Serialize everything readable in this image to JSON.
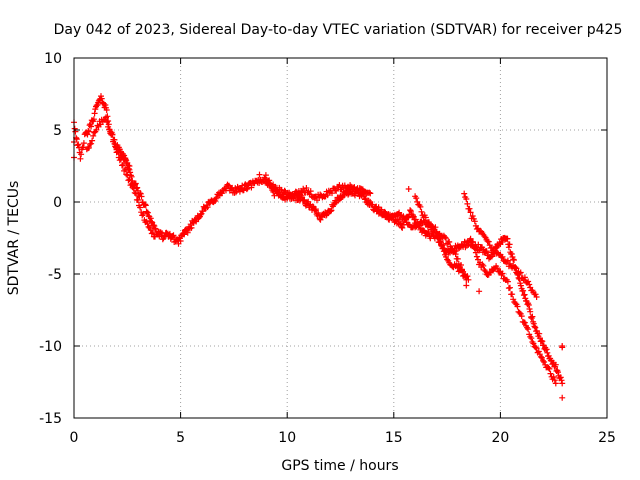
{
  "chart_data": {
    "type": "scatter",
    "title": "Day 042 of 2023, Sidereal Day-to-day VTEC variation (SDTVAR) for receiver p425",
    "xlabel": "GPS time / hours",
    "ylabel": "SDTVAR / TECUs",
    "xlim": [
      0,
      25
    ],
    "ylim": [
      -15,
      10
    ],
    "xticks": [
      0,
      5,
      10,
      15,
      20,
      25
    ],
    "yticks": [
      -15,
      -10,
      -5,
      0,
      5,
      10
    ],
    "x_tick_labels": [
      "0",
      "5",
      "10",
      "15",
      "20",
      "25"
    ],
    "y_tick_labels": [
      "-15",
      "-10",
      "-5",
      "0",
      "5",
      "10"
    ],
    "grid": true,
    "marker": "+",
    "color": "#ff0000",
    "series": [
      {
        "name": "SDTVAR",
        "trend": [
          [
            0.0,
            3.2
          ],
          [
            0.0,
            5.5
          ],
          [
            0.3,
            3.0
          ],
          [
            0.5,
            4.5
          ],
          [
            0.7,
            5.0
          ],
          [
            0.9,
            5.8
          ],
          [
            1.1,
            6.8
          ],
          [
            1.3,
            7.2
          ],
          [
            1.5,
            6.5
          ],
          [
            1.7,
            5.0
          ],
          [
            1.9,
            4.0
          ],
          [
            2.1,
            3.6
          ],
          [
            2.4,
            3.0
          ],
          [
            2.7,
            1.6
          ],
          [
            3.0,
            0.8
          ],
          [
            3.3,
            -0.2
          ],
          [
            3.6,
            -1.2
          ],
          [
            3.9,
            -2.2
          ],
          [
            4.2,
            -2.4
          ],
          [
            4.5,
            -2.3
          ],
          [
            4.8,
            -2.7
          ],
          [
            5.1,
            -2.4
          ],
          [
            5.4,
            -1.8
          ],
          [
            5.8,
            -1.0
          ],
          [
            6.3,
            -0.2
          ],
          [
            6.8,
            0.5
          ],
          [
            7.2,
            1.0
          ],
          [
            7.6,
            0.8
          ],
          [
            8.0,
            1.0
          ],
          [
            8.5,
            1.3
          ],
          [
            8.9,
            1.6
          ],
          [
            9.3,
            1.1
          ],
          [
            9.7,
            0.7
          ],
          [
            10.2,
            0.4
          ],
          [
            10.7,
            0.2
          ],
          [
            11.2,
            -0.5
          ],
          [
            11.6,
            -1.1
          ],
          [
            12.0,
            -0.5
          ],
          [
            12.5,
            0.4
          ],
          [
            13.0,
            0.7
          ],
          [
            13.5,
            0.5
          ],
          [
            14.0,
            -0.3
          ],
          [
            14.5,
            -0.8
          ],
          [
            15.0,
            -1.2
          ],
          [
            15.4,
            -1.6
          ],
          [
            15.8,
            -0.6
          ],
          [
            16.1,
            -1.6
          ],
          [
            16.5,
            -2.2
          ],
          [
            17.0,
            -2.5
          ],
          [
            17.5,
            -3.5
          ],
          [
            18.0,
            -3.2
          ],
          [
            18.5,
            -2.8
          ],
          [
            19.0,
            -3.2
          ],
          [
            19.5,
            -3.8
          ],
          [
            20.0,
            -2.8
          ],
          [
            20.3,
            -2.5
          ],
          [
            20.6,
            -4.0
          ],
          [
            21.0,
            -6.0
          ],
          [
            21.3,
            -7.2
          ],
          [
            21.6,
            -8.5
          ],
          [
            22.0,
            -10.0
          ],
          [
            22.3,
            -10.8
          ],
          [
            22.6,
            -11.5
          ],
          [
            22.9,
            -12.6
          ]
        ],
        "branches": [
          [
            [
              0.6,
              3.5
            ],
            [
              0.9,
              4.5
            ],
            [
              1.2,
              5.5
            ],
            [
              1.5,
              5.8
            ],
            [
              1.8,
              4.5
            ],
            [
              2.0,
              3.8
            ],
            [
              2.3,
              3.2
            ],
            [
              2.6,
              2.5
            ]
          ],
          [
            [
              2.0,
              3.5
            ],
            [
              2.3,
              2.5
            ],
            [
              2.6,
              1.5
            ],
            [
              2.9,
              0.5
            ],
            [
              3.2,
              -0.8
            ],
            [
              3.5,
              -1.8
            ],
            [
              3.8,
              -2.4
            ]
          ],
          [
            [
              9.0,
              1.7
            ],
            [
              9.4,
              0.6
            ],
            [
              9.9,
              0.3
            ],
            [
              10.4,
              0.6
            ],
            [
              10.9,
              0.8
            ],
            [
              11.4,
              0.3
            ],
            [
              11.9,
              0.6
            ],
            [
              12.4,
              1.0
            ],
            [
              12.9,
              1.1
            ],
            [
              13.4,
              0.8
            ],
            [
              13.9,
              0.6
            ]
          ],
          [
            [
              16.0,
              0.5
            ],
            [
              16.3,
              -0.7
            ],
            [
              16.7,
              -1.6
            ],
            [
              17.1,
              -2.1
            ],
            [
              17.6,
              -2.9
            ],
            [
              18.0,
              -4.0
            ],
            [
              18.4,
              -5.4
            ]
          ],
          [
            [
              18.3,
              0.6
            ],
            [
              18.6,
              -0.8
            ],
            [
              18.9,
              -1.8
            ],
            [
              19.2,
              -2.2
            ],
            [
              19.6,
              -3.3
            ],
            [
              20.0,
              -3.7
            ],
            [
              20.4,
              -4.3
            ],
            [
              20.8,
              -4.8
            ],
            [
              21.3,
              -5.6
            ],
            [
              21.7,
              -6.6
            ]
          ],
          [
            [
              18.6,
              -2.5
            ],
            [
              19.0,
              -4.2
            ],
            [
              19.4,
              -5.0
            ],
            [
              19.8,
              -4.6
            ],
            [
              20.3,
              -5.5
            ],
            [
              20.8,
              -7.4
            ],
            [
              21.3,
              -9.0
            ],
            [
              21.7,
              -10.2
            ],
            [
              22.1,
              -11.2
            ],
            [
              22.6,
              -12.6
            ]
          ],
          [
            [
              17.0,
              -2.0
            ],
            [
              17.5,
              -4.1
            ],
            [
              18.0,
              -4.6
            ],
            [
              18.5,
              -5.4
            ]
          ],
          [
            [
              14.2,
              -0.6
            ],
            [
              14.8,
              -1.0
            ],
            [
              15.3,
              -0.9
            ],
            [
              15.9,
              -1.8
            ],
            [
              16.4,
              -1.4
            ],
            [
              16.9,
              -1.9
            ]
          ]
        ],
        "outliers": [
          [
            22.9,
            -13.6
          ],
          [
            22.9,
            -10.0
          ],
          [
            22.9,
            -10.1
          ],
          [
            18.4,
            -5.8
          ],
          [
            19.0,
            -6.2
          ],
          [
            15.7,
            0.9
          ],
          [
            8.7,
            1.9
          ],
          [
            4.9,
            -2.9
          ]
        ]
      }
    ]
  }
}
